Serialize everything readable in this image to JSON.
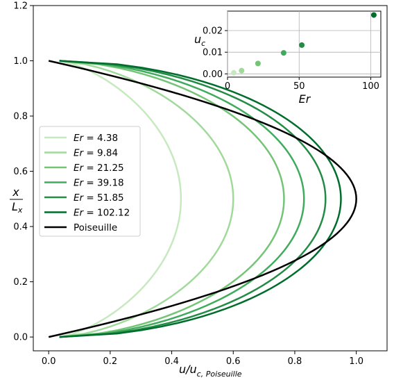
{
  "chart_data": [
    {
      "type": "line",
      "xlabel": "u/u",
      "xlabel_sub": "c, Poiseuille",
      "ylabel_num": "x",
      "ylabel_den": "L",
      "ylabel_den_sub": "x",
      "xlim": [
        -0.05,
        1.1
      ],
      "ylim": [
        -0.05,
        1.2
      ],
      "xticks": [
        "0.0",
        "0.2",
        "0.4",
        "0.6",
        "0.8",
        "1.0"
      ],
      "yticks": [
        "0.0",
        "0.2",
        "0.4",
        "0.6",
        "0.8",
        "1.0",
        "1.2"
      ],
      "legend_position": "center-left",
      "grid": false,
      "series": [
        {
          "name": "Er = 4.38",
          "label_var": "Er",
          "label_value": "4.38",
          "color": "#c7e9c0",
          "peak": 0.43,
          "x_start": 0.035
        },
        {
          "name": "Er = 9.84",
          "label_var": "Er",
          "label_value": "9.84",
          "color": "#a1d99b",
          "peak": 0.6,
          "x_start": 0.035
        },
        {
          "name": "Er = 21.25",
          "label_var": "Er",
          "label_value": "21.25",
          "color": "#74c476",
          "peak": 0.765,
          "x_start": 0.035
        },
        {
          "name": "Er = 39.18",
          "label_var": "Er",
          "label_value": "39.18",
          "color": "#41ab5d",
          "peak": 0.83,
          "x_start": 0.035
        },
        {
          "name": "Er = 51.85",
          "label_var": "Er",
          "label_value": "51.85",
          "color": "#238b45",
          "peak": 0.9,
          "x_start": 0.035
        },
        {
          "name": "Er = 102.12",
          "label_var": "Er",
          "label_value": "102.12",
          "color": "#006d2c",
          "peak": 0.95,
          "x_start": 0.035
        },
        {
          "name": "Poiseuille",
          "label_var": "",
          "label_value": "Poiseuille",
          "color": "#000000",
          "peak": 1.0,
          "x_start": 0.0
        }
      ]
    },
    {
      "type": "scatter",
      "xlabel": "Er",
      "ylabel": "u",
      "ylabel_sub": "c",
      "xlim": [
        0,
        107
      ],
      "ylim": [
        -0.0015,
        0.029
      ],
      "xticks": [
        "0",
        "50",
        "100"
      ],
      "yticks": [
        "0.00",
        "0.01",
        "0.02"
      ],
      "grid": true,
      "points": [
        {
          "x": 4.38,
          "y": 0.0005,
          "color": "#c7e9c0"
        },
        {
          "x": 9.84,
          "y": 0.0015,
          "color": "#a1d99b"
        },
        {
          "x": 21.25,
          "y": 0.0048,
          "color": "#74c476"
        },
        {
          "x": 39.18,
          "y": 0.0097,
          "color": "#41ab5d"
        },
        {
          "x": 51.85,
          "y": 0.0133,
          "color": "#238b45"
        },
        {
          "x": 102.12,
          "y": 0.0272,
          "color": "#006d2c"
        }
      ]
    }
  ]
}
